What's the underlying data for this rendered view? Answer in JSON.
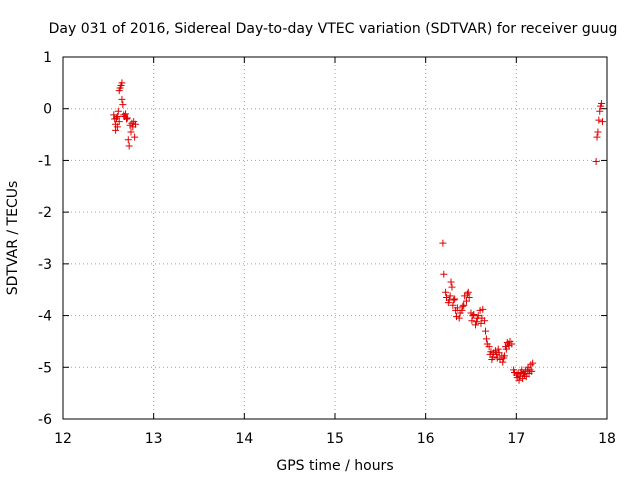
{
  "chart_data": {
    "type": "scatter",
    "title": "Day 031 of 2016, Sidereal Day-to-day VTEC variation (SDTVAR) for receiver guug",
    "xlabel": "GPS time / hours",
    "ylabel": "SDTVAR / TECUs",
    "xlim": [
      12,
      18
    ],
    "ylim": [
      -6,
      1
    ],
    "grid": true,
    "marker": "+",
    "color": "#e00000",
    "xticks": [
      12,
      13,
      14,
      15,
      16,
      17,
      18
    ],
    "yticks": [
      -6,
      -5,
      -4,
      -3,
      -2,
      -1,
      0,
      1
    ],
    "xtick_labels": [
      "12",
      "13",
      "14",
      "15",
      "16",
      "17",
      "18"
    ],
    "ytick_labels": [
      "-6",
      "-5",
      "-4",
      "-3",
      "-2",
      "-1",
      "0",
      "1"
    ],
    "series": [
      {
        "name": "SDTVAR",
        "points": [
          [
            12.56,
            -0.12
          ],
          [
            12.57,
            -0.2
          ],
          [
            12.58,
            -0.3
          ],
          [
            12.58,
            -0.42
          ],
          [
            12.59,
            -0.18
          ],
          [
            12.6,
            -0.35
          ],
          [
            12.6,
            -0.15
          ],
          [
            12.61,
            -0.05
          ],
          [
            12.62,
            -0.25
          ],
          [
            12.62,
            0.35
          ],
          [
            12.63,
            0.4
          ],
          [
            12.64,
            0.45
          ],
          [
            12.65,
            0.5
          ],
          [
            12.65,
            0.18
          ],
          [
            12.66,
            0.08
          ],
          [
            12.67,
            -0.12
          ],
          [
            12.68,
            -0.15
          ],
          [
            12.69,
            -0.1
          ],
          [
            12.7,
            -0.2
          ],
          [
            12.71,
            -0.18
          ],
          [
            12.72,
            -0.6
          ],
          [
            12.73,
            -0.72
          ],
          [
            12.74,
            -0.32
          ],
          [
            12.75,
            -0.45
          ],
          [
            12.76,
            -0.28
          ],
          [
            12.77,
            -0.35
          ],
          [
            12.78,
            -0.25
          ],
          [
            12.79,
            -0.55
          ],
          [
            12.8,
            -0.3
          ],
          [
            16.19,
            -2.6
          ],
          [
            16.2,
            -3.2
          ],
          [
            16.22,
            -3.55
          ],
          [
            16.23,
            -3.65
          ],
          [
            16.25,
            -3.75
          ],
          [
            16.26,
            -3.7
          ],
          [
            16.27,
            -3.62
          ],
          [
            16.28,
            -3.35
          ],
          [
            16.29,
            -3.45
          ],
          [
            16.3,
            -3.8
          ],
          [
            16.31,
            -3.7
          ],
          [
            16.32,
            -3.68
          ],
          [
            16.33,
            -3.9
          ],
          [
            16.34,
            -4.02
          ],
          [
            16.35,
            -3.85
          ],
          [
            16.37,
            -4.05
          ],
          [
            16.38,
            -3.95
          ],
          [
            16.4,
            -3.9
          ],
          [
            16.41,
            -3.82
          ],
          [
            16.42,
            -3.8
          ],
          [
            16.43,
            -3.62
          ],
          [
            16.45,
            -3.72
          ],
          [
            16.46,
            -3.58
          ],
          [
            16.47,
            -3.55
          ],
          [
            16.48,
            -3.65
          ],
          [
            16.5,
            -3.95
          ],
          [
            16.51,
            -4.1
          ],
          [
            16.52,
            -4.0
          ],
          [
            16.53,
            -3.98
          ],
          [
            16.55,
            -4.18
          ],
          [
            16.56,
            -4.12
          ],
          [
            16.57,
            -4.05
          ],
          [
            16.58,
            -4.0
          ],
          [
            16.6,
            -3.9
          ],
          [
            16.61,
            -4.15
          ],
          [
            16.62,
            -4.05
          ],
          [
            16.63,
            -3.88
          ],
          [
            16.65,
            -4.1
          ],
          [
            16.66,
            -4.3
          ],
          [
            16.67,
            -4.45
          ],
          [
            16.68,
            -4.55
          ],
          [
            16.7,
            -4.6
          ],
          [
            16.71,
            -4.75
          ],
          [
            16.72,
            -4.7
          ],
          [
            16.73,
            -4.85
          ],
          [
            16.74,
            -4.8
          ],
          [
            16.75,
            -4.72
          ],
          [
            16.77,
            -4.68
          ],
          [
            16.78,
            -4.75
          ],
          [
            16.79,
            -4.82
          ],
          [
            16.8,
            -4.65
          ],
          [
            16.81,
            -4.72
          ],
          [
            16.82,
            -4.85
          ],
          [
            16.84,
            -4.78
          ],
          [
            16.85,
            -4.9
          ],
          [
            16.86,
            -4.82
          ],
          [
            16.87,
            -4.78
          ],
          [
            16.88,
            -4.6
          ],
          [
            16.89,
            -4.65
          ],
          [
            16.9,
            -4.52
          ],
          [
            16.91,
            -4.55
          ],
          [
            16.92,
            -4.58
          ],
          [
            16.93,
            -4.5
          ],
          [
            16.95,
            -4.55
          ],
          [
            16.97,
            -5.05
          ],
          [
            16.98,
            -5.1
          ],
          [
            17.0,
            -5.15
          ],
          [
            17.01,
            -5.2
          ],
          [
            17.02,
            -5.12
          ],
          [
            17.03,
            -5.25
          ],
          [
            17.04,
            -5.18
          ],
          [
            17.05,
            -5.1
          ],
          [
            17.06,
            -5.05
          ],
          [
            17.07,
            -5.22
          ],
          [
            17.08,
            -5.12
          ],
          [
            17.09,
            -5.15
          ],
          [
            17.1,
            -5.08
          ],
          [
            17.11,
            -5.18
          ],
          [
            17.12,
            -5.05
          ],
          [
            17.13,
            -5.0
          ],
          [
            17.14,
            -5.12
          ],
          [
            17.15,
            -5.05
          ],
          [
            17.16,
            -4.95
          ],
          [
            17.17,
            -5.08
          ],
          [
            17.18,
            -4.92
          ],
          [
            17.88,
            -1.02
          ],
          [
            17.89,
            -0.55
          ],
          [
            17.9,
            -0.45
          ],
          [
            17.91,
            -0.22
          ],
          [
            17.92,
            -0.05
          ],
          [
            17.93,
            0.05
          ],
          [
            17.94,
            0.1
          ],
          [
            17.95,
            -0.25
          ]
        ]
      }
    ]
  }
}
